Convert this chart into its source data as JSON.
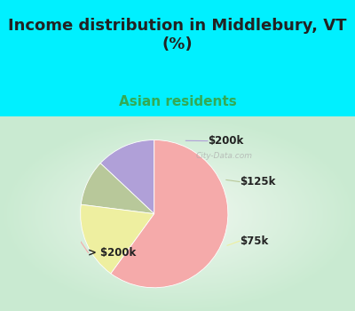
{
  "title": "Income distribution in Middlebury, VT\n(%)",
  "subtitle": "Asian residents",
  "slices": [
    {
      "label": "$200k",
      "value": 13,
      "color": "#b0a0d8"
    },
    {
      "label": "$125k",
      "value": 10,
      "color": "#b8c89a"
    },
    {
      "label": "$75k",
      "value": 17,
      "color": "#eeefa0"
    },
    {
      "label": "> $200k",
      "value": 60,
      "color": "#f5aaaa"
    }
  ],
  "bg_cyan": "#00f0ff",
  "bg_chart_color1": "#c8e8d0",
  "bg_chart_color2": "#f0f8f0",
  "title_color": "#222222",
  "subtitle_color": "#33aa55",
  "label_color": "#222222",
  "label_fontsize": 8.5,
  "title_fontsize": 13,
  "subtitle_fontsize": 11,
  "startangle": 90,
  "watermark": "City-Data.com"
}
